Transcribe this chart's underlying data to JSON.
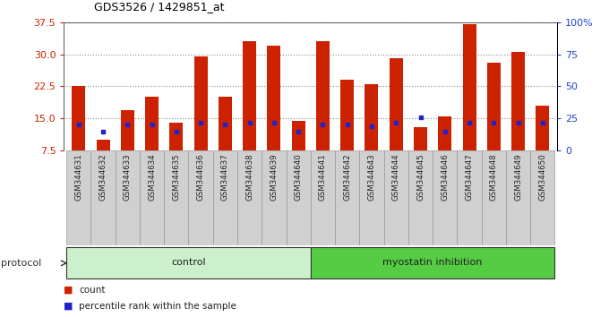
{
  "title": "GDS3526 / 1429851_at",
  "samples": [
    "GSM344631",
    "GSM344632",
    "GSM344633",
    "GSM344634",
    "GSM344635",
    "GSM344636",
    "GSM344637",
    "GSM344638",
    "GSM344639",
    "GSM344640",
    "GSM344641",
    "GSM344642",
    "GSM344643",
    "GSM344644",
    "GSM344645",
    "GSM344646",
    "GSM344647",
    "GSM344648",
    "GSM344649",
    "GSM344650"
  ],
  "red_values": [
    22.5,
    10.0,
    17.0,
    20.0,
    14.0,
    29.5,
    20.0,
    33.0,
    32.0,
    14.5,
    33.0,
    24.0,
    23.0,
    29.0,
    13.0,
    15.5,
    37.0,
    28.0,
    30.5,
    18.0
  ],
  "blue_pct": [
    20,
    15,
    20,
    20,
    15,
    22,
    20,
    22,
    22,
    15,
    20,
    20,
    19,
    22,
    26,
    15,
    22,
    22,
    22,
    22
  ],
  "ylim_left": [
    7.5,
    37.5
  ],
  "ylim_right": [
    0,
    100
  ],
  "yticks_left": [
    7.5,
    15.0,
    22.5,
    30.0,
    37.5
  ],
  "yticks_right": [
    0,
    25,
    50,
    75,
    100
  ],
  "bar_color": "#cc2200",
  "dot_color": "#2222cc",
  "bar_bottom": 7.5,
  "n_control": 10,
  "control_label": "control",
  "myostatin_label": "myostatin inhibition",
  "protocol_label": "protocol",
  "legend_count": "count",
  "legend_pct": "percentile rank within the sample",
  "bg_protocol_control": "#ccf0cc",
  "bg_protocol_myostatin": "#55cc44",
  "bg_xtick": "#d0d0d0",
  "title_fontsize": 9
}
